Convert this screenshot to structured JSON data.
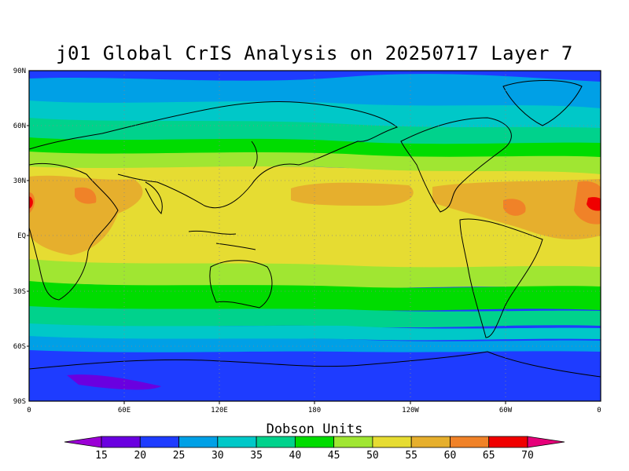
{
  "title": "j01 Global CrIS Analysis on 20250717 Layer 7",
  "colorbar": {
    "title": "Dobson Units",
    "labels": [
      "15",
      "20",
      "25",
      "30",
      "35",
      "40",
      "45",
      "50",
      "55",
      "60",
      "65",
      "70"
    ],
    "colors": [
      "#9b00d6",
      "#6a00e0",
      "#1e3cff",
      "#00a0e6",
      "#00c8c8",
      "#00d28c",
      "#00dc00",
      "#a0e632",
      "#e6dc32",
      "#e6af2d",
      "#f08228",
      "#f00000",
      "#e6007a"
    ]
  },
  "map": {
    "lat_labels": [
      "90N",
      "60N",
      "30N",
      "EQ",
      "30S",
      "60S",
      "90S"
    ],
    "lon_labels": [
      "0",
      "60E",
      "120E",
      "180",
      "120W",
      "60W",
      "0"
    ]
  }
}
